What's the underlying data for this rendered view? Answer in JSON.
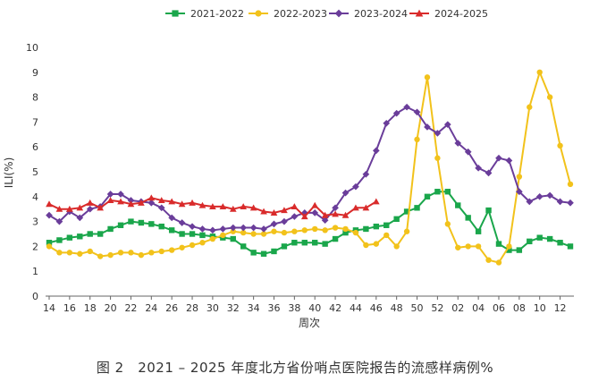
{
  "caption": "图 2　2021 – 2025 年度北方省份哨点医院报告的流感样病例%",
  "chart_data": {
    "type": "line",
    "ylabel": "ILI(%)",
    "xlabel": "周次",
    "ylim": [
      0,
      10
    ],
    "yticks": [
      0,
      1,
      2,
      3,
      4,
      5,
      6,
      7,
      8,
      9,
      10
    ],
    "x": [
      "14",
      "15",
      "16",
      "17",
      "18",
      "19",
      "20",
      "21",
      "22",
      "23",
      "24",
      "25",
      "26",
      "27",
      "28",
      "29",
      "30",
      "31",
      "32",
      "33",
      "34",
      "35",
      "36",
      "37",
      "38",
      "39",
      "40",
      "41",
      "42",
      "43",
      "44",
      "45",
      "46",
      "47",
      "48",
      "49",
      "50",
      "51",
      "52",
      "01",
      "02",
      "03",
      "04",
      "05",
      "06",
      "07",
      "08",
      "09",
      "10",
      "11",
      "12",
      "13"
    ],
    "xtick_labels": [
      "14",
      "16",
      "18",
      "20",
      "22",
      "24",
      "26",
      "28",
      "30",
      "32",
      "34",
      "36",
      "38",
      "40",
      "42",
      "44",
      "46",
      "48",
      "50",
      "52",
      "02",
      "04",
      "06",
      "08",
      "10",
      "12"
    ],
    "grid": false,
    "legend_position": "top",
    "series": [
      {
        "name": "2021-2022",
        "color": "#1aa64b",
        "marker": "square",
        "values": [
          2.15,
          2.25,
          2.35,
          2.4,
          2.5,
          2.5,
          2.7,
          2.85,
          3.0,
          2.95,
          2.9,
          2.8,
          2.65,
          2.5,
          2.5,
          2.45,
          2.4,
          2.35,
          2.3,
          2.0,
          1.75,
          1.7,
          1.8,
          2.0,
          2.15,
          2.15,
          2.15,
          2.1,
          2.3,
          2.55,
          2.65,
          2.7,
          2.8,
          2.85,
          3.1,
          3.4,
          3.55,
          4.0,
          4.2,
          4.2,
          3.65,
          3.15,
          2.6,
          3.45,
          2.1,
          1.85,
          1.85,
          2.2,
          2.35,
          2.3,
          2.15,
          2.0
        ]
      },
      {
        "name": "2022-2023",
        "color": "#f2c21b",
        "marker": "circle",
        "values": [
          2.0,
          1.75,
          1.75,
          1.7,
          1.8,
          1.6,
          1.65,
          1.75,
          1.75,
          1.65,
          1.75,
          1.8,
          1.85,
          1.95,
          2.05,
          2.15,
          2.3,
          2.45,
          2.6,
          2.55,
          2.5,
          2.5,
          2.6,
          2.55,
          2.6,
          2.65,
          2.7,
          2.65,
          2.75,
          2.7,
          2.55,
          2.05,
          2.1,
          2.45,
          2.0,
          2.6,
          6.3,
          8.8,
          5.55,
          2.9,
          1.95,
          2.0,
          2.0,
          1.45,
          1.35,
          2.0,
          4.8,
          7.6,
          9.0,
          8.0,
          6.05,
          4.5
        ]
      },
      {
        "name": "2023-2024",
        "color": "#6a3d9a",
        "marker": "diamond",
        "values": [
          3.25,
          3.0,
          3.4,
          3.15,
          3.5,
          3.6,
          4.1,
          4.1,
          3.85,
          3.8,
          3.75,
          3.55,
          3.15,
          2.95,
          2.8,
          2.7,
          2.65,
          2.7,
          2.75,
          2.75,
          2.75,
          2.7,
          2.9,
          3.0,
          3.2,
          3.35,
          3.35,
          3.05,
          3.55,
          4.15,
          4.4,
          4.9,
          5.85,
          6.95,
          7.35,
          7.6,
          7.4,
          6.8,
          6.55,
          6.9,
          6.15,
          5.8,
          5.15,
          4.95,
          5.55,
          5.45,
          4.2,
          3.8,
          4.0,
          4.05,
          3.8,
          3.75
        ]
      },
      {
        "name": "2024-2025",
        "color": "#d92b2b",
        "marker": "triangle",
        "values": [
          3.7,
          3.5,
          3.5,
          3.55,
          3.75,
          3.55,
          3.85,
          3.8,
          3.7,
          3.75,
          3.95,
          3.85,
          3.8,
          3.7,
          3.75,
          3.65,
          3.6,
          3.6,
          3.5,
          3.6,
          3.55,
          3.4,
          3.35,
          3.45,
          3.6,
          3.2,
          3.65,
          3.25,
          3.3,
          3.25,
          3.55,
          3.55,
          3.8,
          null,
          null,
          null,
          null,
          null,
          null,
          null,
          null,
          null,
          null,
          null,
          null,
          null,
          null,
          null,
          null,
          null,
          null,
          null
        ]
      }
    ]
  }
}
